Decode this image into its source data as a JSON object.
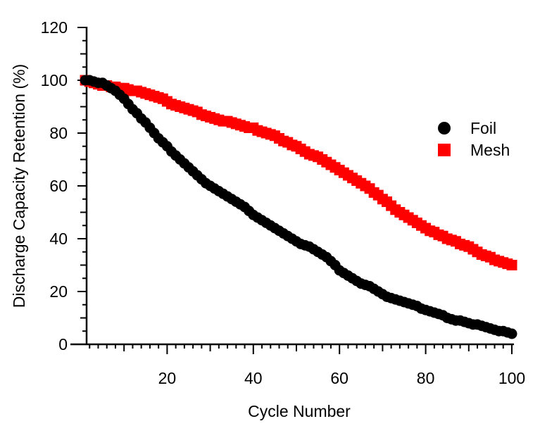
{
  "chart_data": {
    "type": "scatter",
    "xlabel": "Cycle Number",
    "ylabel": "Discharge Capacity Retention (%)",
    "xlim": [
      0,
      100
    ],
    "ylim": [
      0,
      120
    ],
    "x_ticks": [
      20,
      40,
      60,
      80,
      100
    ],
    "y_ticks": [
      0,
      20,
      40,
      60,
      80,
      100,
      120
    ],
    "grid": false,
    "legend_placement": "right",
    "x": [
      1,
      2,
      3,
      4,
      5,
      6,
      7,
      8,
      9,
      10,
      11,
      12,
      13,
      14,
      15,
      16,
      17,
      18,
      19,
      20,
      21,
      22,
      23,
      24,
      25,
      26,
      27,
      28,
      29,
      30,
      31,
      32,
      33,
      34,
      35,
      36,
      37,
      38,
      39,
      40,
      41,
      42,
      43,
      44,
      45,
      46,
      47,
      48,
      49,
      50,
      51,
      52,
      53,
      54,
      55,
      56,
      57,
      58,
      59,
      60,
      61,
      62,
      63,
      64,
      65,
      66,
      67,
      68,
      69,
      70,
      71,
      72,
      73,
      74,
      75,
      76,
      77,
      78,
      79,
      80,
      81,
      82,
      83,
      84,
      85,
      86,
      87,
      88,
      89,
      90,
      91,
      92,
      93,
      94,
      95,
      96,
      97,
      98,
      99,
      100
    ],
    "series": [
      {
        "name": "Foil",
        "color": "#000000",
        "marker": "circle",
        "values": [
          100,
          100,
          99.5,
          99,
          99,
          98,
          97,
          96,
          94.5,
          93,
          91,
          89,
          87.5,
          85.5,
          84,
          82,
          80,
          78,
          76.5,
          75,
          73,
          71.5,
          70,
          68.5,
          67,
          65.5,
          64,
          62.5,
          61,
          60,
          59,
          58,
          57,
          56,
          55,
          54,
          53,
          52,
          50.5,
          49,
          48,
          47,
          46,
          45,
          44,
          43,
          42,
          41,
          40,
          39,
          38,
          37.5,
          37,
          36,
          35,
          34,
          33,
          31.5,
          30,
          28,
          27,
          26,
          25,
          24,
          23,
          22.5,
          22,
          21,
          20,
          19,
          18,
          17.5,
          17,
          16.5,
          16,
          15.5,
          15,
          14.5,
          13.5,
          13,
          12.5,
          12,
          11.5,
          11,
          10,
          9.5,
          9,
          9,
          8.5,
          8,
          7.5,
          7.5,
          7,
          6.5,
          6,
          5.5,
          5,
          5,
          4.5,
          4
        ]
      },
      {
        "name": "Mesh",
        "color": "#ff0000",
        "marker": "square",
        "values": [
          100,
          99.5,
          99,
          98.5,
          98,
          98,
          97.5,
          97.5,
          97,
          97,
          96.5,
          96,
          96,
          95.5,
          95,
          94.5,
          94,
          93.5,
          93,
          92,
          91,
          90.5,
          90,
          89.5,
          89,
          88.5,
          88,
          87,
          86.5,
          86,
          85.5,
          85,
          84.5,
          84.5,
          84,
          83.5,
          83,
          82.5,
          82,
          82,
          81,
          80.5,
          80,
          79.5,
          79,
          78,
          77,
          76.5,
          75.5,
          75,
          74,
          73,
          72,
          71.5,
          71,
          70,
          69,
          68,
          67,
          66,
          65,
          64,
          63,
          62,
          61,
          60,
          59,
          57.5,
          56.5,
          55,
          54,
          52.5,
          51,
          50,
          49,
          48,
          47,
          46,
          45,
          44,
          43,
          42.5,
          41.5,
          41,
          40,
          39.5,
          39,
          38,
          37.5,
          37,
          36,
          35,
          34,
          33.5,
          33,
          32,
          31.5,
          31,
          30.5,
          30
        ]
      }
    ]
  }
}
